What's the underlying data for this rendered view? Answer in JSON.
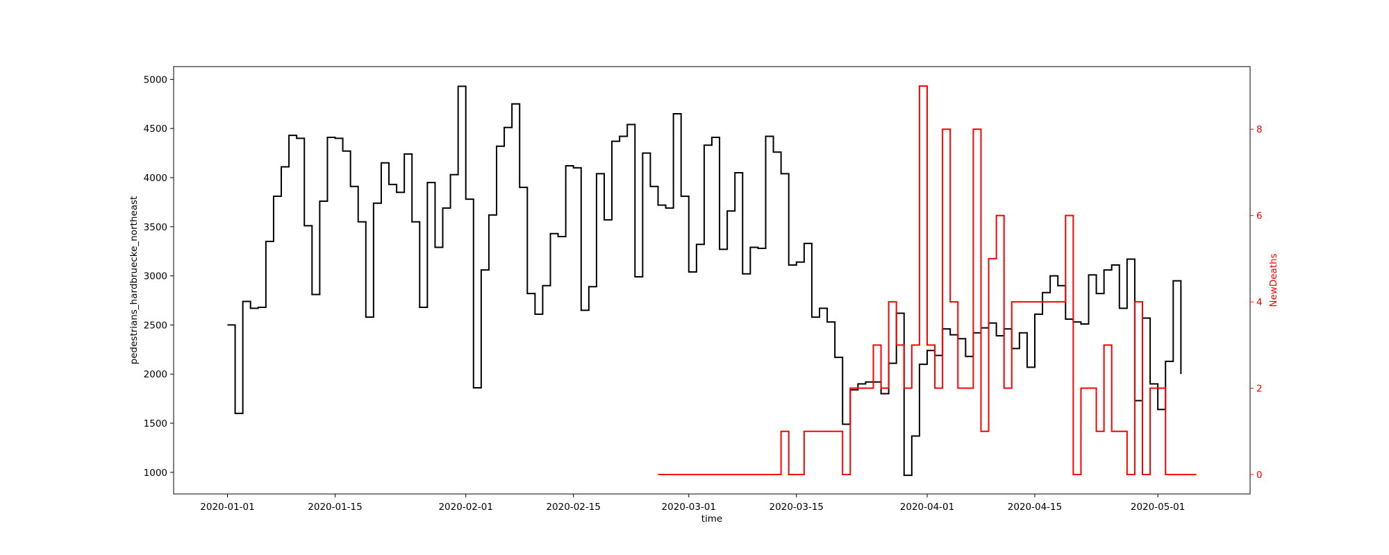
{
  "chart_data": {
    "type": "line",
    "step": "post",
    "xlabel": "time",
    "x_ticks": [
      "2020-01-01",
      "2020-01-15",
      "2020-02-01",
      "2020-02-15",
      "2020-03-01",
      "2020-03-15",
      "2020-04-01",
      "2020-04-15",
      "2020-05-01"
    ],
    "x_range": [
      "2019-12-25",
      "2020-05-13"
    ],
    "y_left": {
      "label": "pedestrians_hardbruecke_northeast",
      "range": [
        780,
        5130
      ],
      "ticks": [
        1000,
        1500,
        2000,
        2500,
        3000,
        3500,
        4000,
        4500,
        5000
      ],
      "color": "#000000"
    },
    "y_right": {
      "label": "NewDeaths",
      "range": [
        -0.45,
        9.45
      ],
      "ticks": [
        0,
        2,
        4,
        6,
        8
      ],
      "color": "#ff0000"
    },
    "series": [
      {
        "name": "pedestrians_hardbruecke_northeast",
        "axis": "left",
        "color": "#000000",
        "start": "2020-01-01",
        "values": [
          2500,
          1600,
          2740,
          2670,
          2680,
          3350,
          3810,
          4110,
          4430,
          4400,
          3510,
          2810,
          3760,
          4410,
          4400,
          4270,
          3910,
          3550,
          2580,
          3740,
          4150,
          3930,
          3850,
          4240,
          3550,
          2680,
          3950,
          3290,
          3690,
          4030,
          4930,
          3780,
          1860,
          3060,
          3620,
          4320,
          4510,
          4750,
          3900,
          2820,
          2610,
          2900,
          3430,
          3400,
          4120,
          4100,
          2650,
          2890,
          4040,
          3570,
          4370,
          4420,
          4540,
          2990,
          4250,
          3910,
          3720,
          3690,
          4650,
          3810,
          3040,
          3320,
          4330,
          4410,
          3270,
          3660,
          4050,
          3020,
          3290,
          3280,
          4420,
          4260,
          4040,
          3110,
          3140,
          3330,
          2580,
          2670,
          2530,
          2170,
          1490,
          1840,
          1900,
          1920,
          1920,
          1800,
          2110,
          2620,
          970,
          1370,
          2100,
          2240,
          2190,
          2460,
          2400,
          2360,
          2180,
          2420,
          2470,
          2520,
          2390,
          2460,
          2260,
          2420,
          2070,
          2610,
          2830,
          3000,
          2900,
          2560,
          2530,
          2510,
          3010,
          2820,
          3060,
          3110,
          2670,
          3170,
          1730,
          2570,
          1900,
          1640,
          2130,
          2950,
          2000
        ]
      },
      {
        "name": "NewDeaths",
        "axis": "right",
        "color": "#ff0000",
        "start": "2020-02-26",
        "values": [
          0,
          0,
          0,
          0,
          0,
          0,
          0,
          0,
          0,
          0,
          0,
          0,
          0,
          0,
          0,
          0,
          1,
          0,
          0,
          1,
          1,
          1,
          1,
          1,
          0,
          2,
          2,
          2,
          3,
          2,
          4,
          3,
          2,
          3,
          9,
          3,
          2,
          8,
          4,
          2,
          2,
          8,
          1,
          5,
          6,
          2,
          4,
          4,
          4,
          4,
          4,
          4,
          4,
          6,
          0,
          2,
          2,
          1,
          3,
          1,
          1,
          0,
          4,
          0,
          2,
          2,
          0,
          0,
          0,
          0,
          0
        ]
      }
    ]
  }
}
